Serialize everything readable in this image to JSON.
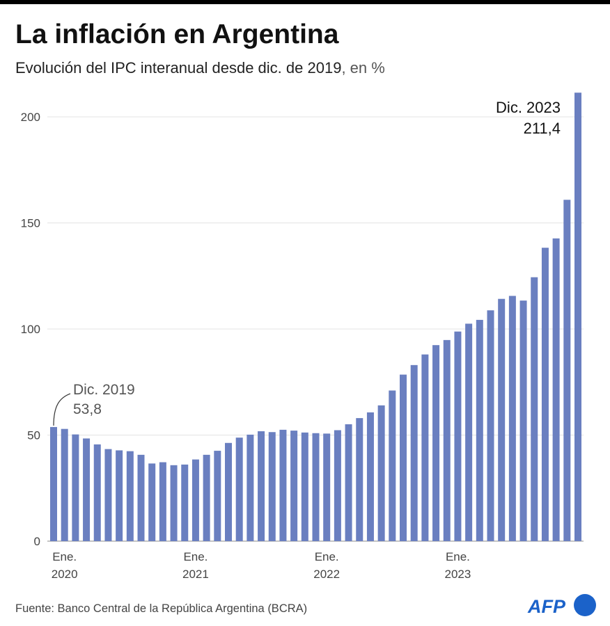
{
  "title": "La inflación en Argentina",
  "subtitle": "Evolución del IPC interanual desde dic. de 2019",
  "subtitle_unit": ", en %",
  "source": "Fuente: Banco Central de la República Argentina (BCRA)",
  "logo": "AFP",
  "colors": {
    "bar": "#6a7fc0",
    "grid": "#e3e3e3",
    "logo": "#1b62c9"
  },
  "chart_data": {
    "type": "bar",
    "title": "La inflación en Argentina",
    "ylim": [
      0,
      211.4
    ],
    "yticks": [
      0,
      50,
      100,
      150,
      200
    ],
    "grid": true,
    "categories": [
      "dic. 2019",
      "ene. 2020",
      "feb. 2020",
      "mar. 2020",
      "abr. 2020",
      "may. 2020",
      "jun. 2020",
      "jul. 2020",
      "ago. 2020",
      "sep. 2020",
      "oct. 2020",
      "nov. 2020",
      "dic. 2020",
      "ene. 2021",
      "feb. 2021",
      "mar. 2021",
      "abr. 2021",
      "may. 2021",
      "jun. 2021",
      "jul. 2021",
      "ago. 2021",
      "sep. 2021",
      "oct. 2021",
      "nov. 2021",
      "dic. 2021",
      "ene. 2022",
      "feb. 2022",
      "mar. 2022",
      "abr. 2022",
      "may. 2022",
      "jun. 2022",
      "jul. 2022",
      "ago. 2022",
      "sep. 2022",
      "oct. 2022",
      "nov. 2022",
      "dic. 2022",
      "ene. 2023",
      "feb. 2023",
      "mar. 2023",
      "abr. 2023",
      "may. 2023",
      "jun. 2023",
      "jul. 2023",
      "ago. 2023",
      "sep. 2023",
      "oct. 2023",
      "nov. 2023",
      "dic. 2023"
    ],
    "values": [
      53.8,
      52.9,
      50.3,
      48.4,
      45.6,
      43.4,
      42.8,
      42.4,
      40.7,
      36.6,
      37.2,
      35.8,
      36.1,
      38.5,
      40.7,
      42.6,
      46.3,
      48.8,
      50.2,
      51.8,
      51.4,
      52.5,
      52.1,
      51.2,
      50.9,
      50.7,
      52.3,
      55.1,
      58.0,
      60.7,
      64.0,
      71.0,
      78.5,
      83.0,
      88.0,
      92.4,
      94.8,
      98.8,
      102.5,
      104.3,
      108.8,
      114.2,
      115.6,
      113.4,
      124.4,
      138.3,
      142.7,
      160.9,
      211.4
    ],
    "xticks": [
      {
        "index": 1,
        "line1": "Ene.",
        "line2": "2020"
      },
      {
        "index": 13,
        "line1": "Ene.",
        "line2": "2021"
      },
      {
        "index": 25,
        "line1": "Ene.",
        "line2": "2022"
      },
      {
        "index": 37,
        "line1": "Ene.",
        "line2": "2023"
      }
    ],
    "annotations": [
      {
        "index": 0,
        "label": "Dic. 2019",
        "value": "53,8"
      },
      {
        "index": 48,
        "label": "Dic. 2023",
        "value": "211,4"
      }
    ]
  }
}
